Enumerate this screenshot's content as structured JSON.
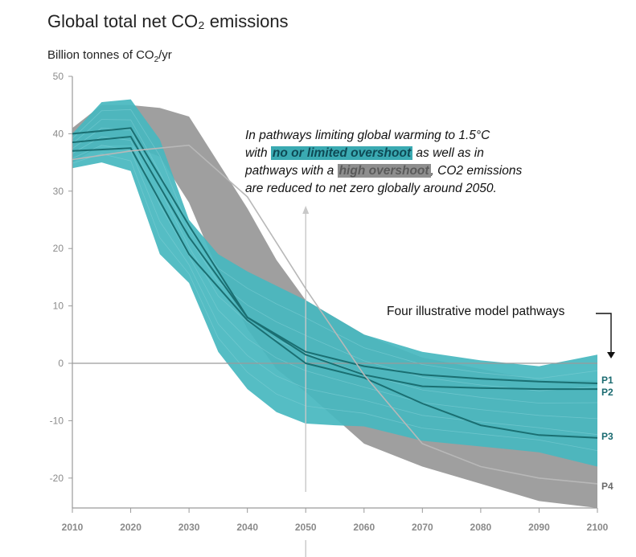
{
  "title": "Global total net CO₂ emissions",
  "subtitle_main": "Billion tonnes of CO",
  "subtitle_sub": "2",
  "subtitle_tail": "/yr",
  "annotation": {
    "line1": "In pathways limiting global warming to 1.5°C",
    "with": "with ",
    "teal_highlight": "no or limited overshoot",
    "after_teal": " as well as in",
    "line3_start": "pathways with a ",
    "grey_highlight": "high overshoot",
    "after_grey": ", CO2 emissions",
    "line4": "are reduced to net zero globally around 2050."
  },
  "callout": "Four illustrative model pathways",
  "colors": {
    "teal_band": "#47b7bf",
    "grey_band": "#9a9a9a",
    "pathway_line": "#1a6f72",
    "axis": "#9a9a9a",
    "tick_text": "#8a8a8a",
    "p_teal_label": "#1a6a70",
    "p_grey_label": "#6b6b6b"
  },
  "chart_data": {
    "type": "area",
    "title": "Global total net CO₂ emissions",
    "ylabel": "Billion tonnes of CO2/yr",
    "xlabel": "",
    "xlim": [
      2010,
      2100
    ],
    "ylim": [
      -25,
      50
    ],
    "x_ticks": [
      2010,
      2020,
      2030,
      2040,
      2050,
      2060,
      2070,
      2080,
      2090,
      2100
    ],
    "y_ticks": [
      50,
      40,
      30,
      20,
      10,
      0,
      -10,
      -20
    ],
    "bands": [
      {
        "name": "high overshoot",
        "color": "#9a9a9a",
        "x": [
          2010,
          2015,
          2020,
          2025,
          2030,
          2035,
          2040,
          2045,
          2050,
          2060,
          2070,
          2080,
          2090,
          2100
        ],
        "upper": [
          41,
          45,
          45,
          44.5,
          43,
          35,
          27,
          18,
          11,
          5,
          1,
          -1,
          -3,
          -3
        ],
        "lower": [
          35,
          38,
          38,
          36,
          28,
          16,
          6,
          -1,
          -5,
          -14,
          -18,
          -21,
          -24,
          -26
        ]
      },
      {
        "name": "no or limited overshoot",
        "color": "#47b7bf",
        "x": [
          2010,
          2015,
          2020,
          2025,
          2030,
          2035,
          2040,
          2045,
          2050,
          2055,
          2060,
          2070,
          2080,
          2090,
          2100
        ],
        "upper": [
          40,
          45.5,
          46,
          39,
          25,
          19,
          16,
          13.5,
          11,
          8,
          5,
          2,
          0.5,
          -0.5,
          1.5
        ],
        "lower": [
          34,
          35,
          33.5,
          19,
          14,
          2,
          -4.5,
          -8.5,
          -10.5,
          -10.8,
          -11,
          -13.5,
          -14.5,
          -15.5,
          -18
        ]
      }
    ],
    "series": [
      {
        "name": "P1",
        "x": [
          2010,
          2020,
          2030,
          2040,
          2050,
          2060,
          2070,
          2080,
          2090,
          2100
        ],
        "values": [
          40,
          41,
          24,
          8,
          2,
          -0.5,
          -2,
          -2.7,
          -3.2,
          -3.5
        ]
      },
      {
        "name": "P2",
        "x": [
          2010,
          2020,
          2030,
          2040,
          2050,
          2060,
          2070,
          2080,
          2090,
          2100
        ],
        "values": [
          38.5,
          39.5,
          22,
          8,
          1.5,
          -2,
          -4,
          -4.3,
          -4.5,
          -4.5
        ]
      },
      {
        "name": "P3",
        "x": [
          2010,
          2020,
          2030,
          2040,
          2050,
          2060,
          2070,
          2080,
          2090,
          2100
        ],
        "values": [
          37,
          37.5,
          19,
          7.5,
          0,
          -2.5,
          -7,
          -10.8,
          -12.5,
          -13
        ]
      },
      {
        "name": "P4",
        "x": [
          2010,
          2020,
          2030,
          2040,
          2050,
          2060,
          2070,
          2080,
          2090,
          2100
        ],
        "values": [
          35.5,
          37,
          38,
          29,
          13,
          -2,
          -14,
          -18,
          -20,
          -21
        ]
      }
    ]
  }
}
